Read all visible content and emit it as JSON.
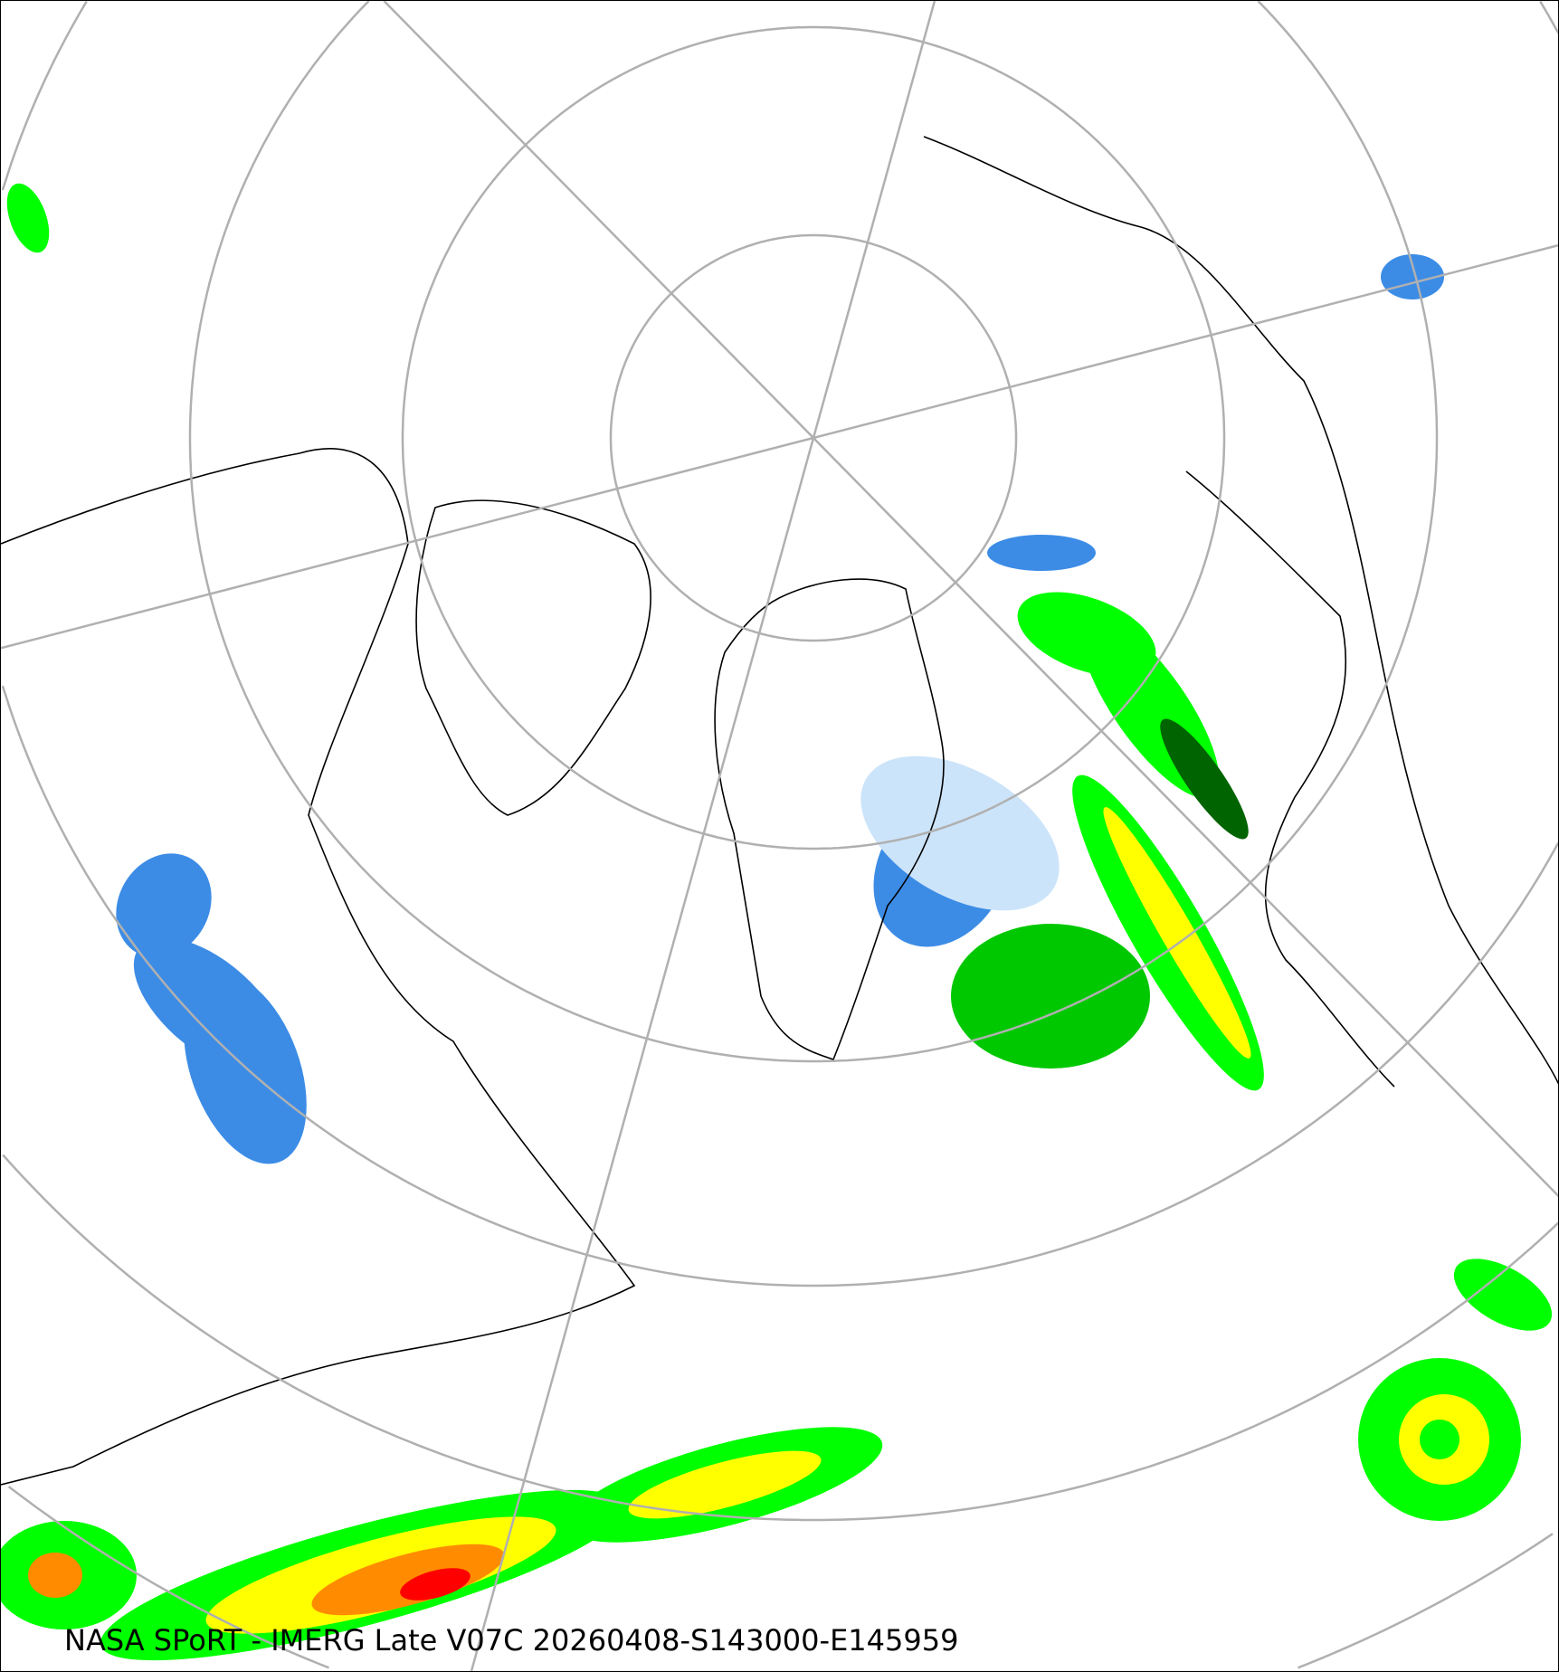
{
  "map": {
    "projection": "north-polar-stereographic",
    "caption": "NASA SPoRT - IMERG Late V07C 20260408-S143000-E145959",
    "colors": {
      "graticule": "#b0b0b0",
      "coastline": "#000000",
      "precip_light_snow": "#cce4fa",
      "precip_snow": "#3c8ce6",
      "precip_heavy_snow": "#1e64c8",
      "precip_light_rain": "#00c800",
      "precip_rain": "#00ff00",
      "precip_moderate": "#ffff00",
      "precip_heavy": "#ff8c00",
      "precip_very_heavy": "#ff0000",
      "precip_dark": "#006400"
    }
  }
}
